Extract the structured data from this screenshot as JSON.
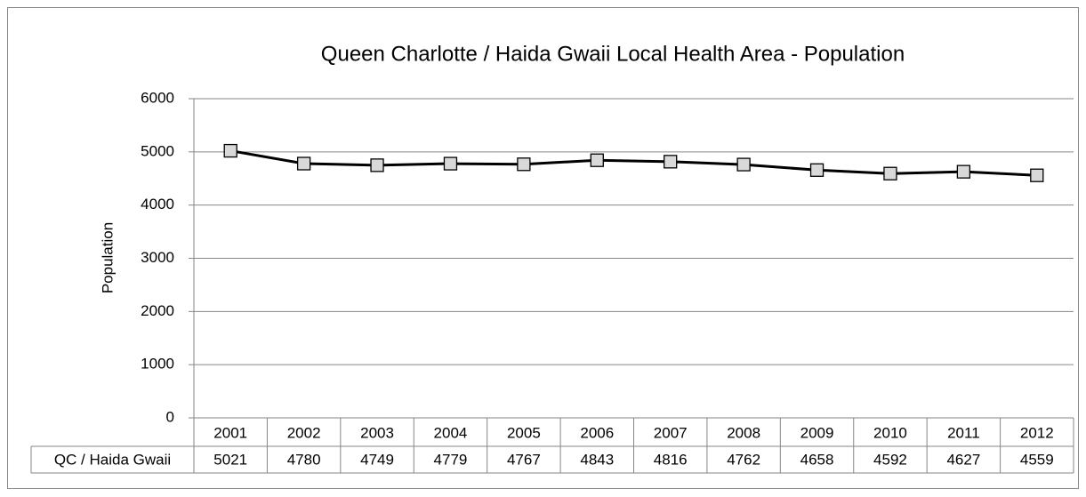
{
  "chart_data": {
    "type": "line",
    "title": "Queen Charlotte / Haida Gwaii Local Health Area - Population",
    "y_label": "Population",
    "categories": [
      "2001",
      "2002",
      "2003",
      "2004",
      "2005",
      "2006",
      "2007",
      "2008",
      "2009",
      "2010",
      "2011",
      "2012"
    ],
    "series": [
      {
        "name": "QC / Haida Gwaii",
        "color": "#000000",
        "marker_color": "#d9d9d9",
        "values": [
          5021,
          4780,
          4749,
          4779,
          4767,
          4843,
          4816,
          4762,
          4658,
          4592,
          4627,
          4559
        ]
      }
    ],
    "ylim": [
      0,
      6000
    ],
    "yticks": [
      0,
      1000,
      2000,
      3000,
      4000,
      5000,
      6000
    ],
    "grid": true
  }
}
